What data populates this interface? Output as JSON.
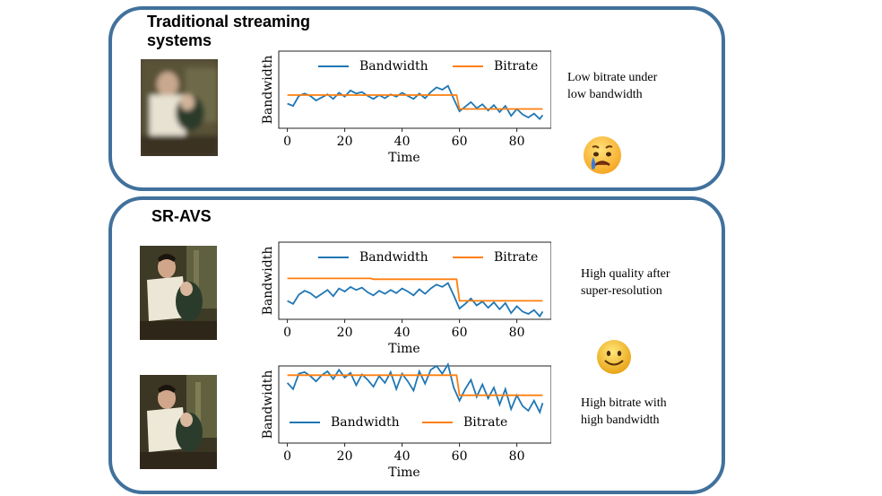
{
  "panels": {
    "traditional": {
      "title": "Traditional streaming\nsystems",
      "caption": "Low bitrate under\nlow bandwidth",
      "emoji": "crying-face-icon"
    },
    "sravs": {
      "title": "SR-AVS",
      "caption_sr": "High quality after\nsuper-resolution",
      "caption_high": "High bitrate with\nhigh bandwidth",
      "emoji": "smiling-face-icon"
    }
  },
  "colors": {
    "border": "#41719c",
    "bandwidth": "#1f77b4",
    "bitrate": "#ff7f0e"
  },
  "chart_data": [
    {
      "type": "line",
      "xlabel": "Time",
      "ylabel": "Bandwidth",
      "xticks": [
        "0",
        "20",
        "40",
        "60",
        "80"
      ],
      "xlim": [
        -3,
        92
      ],
      "ylim": [
        0,
        1
      ],
      "legend": "top",
      "series": [
        {
          "name": "Bandwidth",
          "x": [
            0,
            2,
            4,
            6,
            8,
            10,
            12,
            14,
            16,
            18,
            20,
            22,
            24,
            26,
            28,
            30,
            32,
            34,
            36,
            38,
            40,
            42,
            44,
            46,
            48,
            50,
            52,
            54,
            56,
            58,
            60,
            62,
            64,
            66,
            68,
            70,
            72,
            74,
            76,
            78,
            80,
            82,
            84,
            86,
            88,
            89
          ],
          "values": [
            0.32,
            0.29,
            0.42,
            0.45,
            0.42,
            0.36,
            0.4,
            0.44,
            0.38,
            0.46,
            0.41,
            0.49,
            0.45,
            0.47,
            0.42,
            0.38,
            0.43,
            0.39,
            0.44,
            0.41,
            0.46,
            0.42,
            0.38,
            0.45,
            0.39,
            0.47,
            0.53,
            0.5,
            0.55,
            0.38,
            0.22,
            0.28,
            0.34,
            0.26,
            0.31,
            0.23,
            0.3,
            0.21,
            0.29,
            0.16,
            0.25,
            0.18,
            0.14,
            0.19,
            0.12,
            0.17
          ]
        },
        {
          "name": "Bitrate",
          "x": [
            0,
            59,
            60,
            89
          ],
          "values": [
            0.43,
            0.43,
            0.25,
            0.25
          ]
        }
      ]
    },
    {
      "type": "line",
      "xlabel": "Time",
      "ylabel": "Bandwidth",
      "xticks": [
        "0",
        "20",
        "40",
        "60",
        "80"
      ],
      "xlim": [
        -3,
        92
      ],
      "ylim": [
        0,
        1
      ],
      "legend": "top",
      "series": [
        {
          "name": "Bandwidth",
          "x": [
            0,
            2,
            4,
            6,
            8,
            10,
            12,
            14,
            16,
            18,
            20,
            22,
            24,
            26,
            28,
            30,
            32,
            34,
            36,
            38,
            40,
            42,
            44,
            46,
            48,
            50,
            52,
            54,
            56,
            58,
            60,
            62,
            64,
            66,
            68,
            70,
            72,
            74,
            76,
            78,
            80,
            82,
            84,
            86,
            88,
            89
          ],
          "values": [
            0.24,
            0.2,
            0.32,
            0.37,
            0.34,
            0.28,
            0.33,
            0.38,
            0.3,
            0.4,
            0.36,
            0.42,
            0.38,
            0.41,
            0.35,
            0.31,
            0.37,
            0.33,
            0.38,
            0.34,
            0.4,
            0.36,
            0.31,
            0.39,
            0.33,
            0.4,
            0.45,
            0.42,
            0.47,
            0.31,
            0.14,
            0.2,
            0.27,
            0.18,
            0.23,
            0.15,
            0.22,
            0.13,
            0.21,
            0.08,
            0.17,
            0.1,
            0.07,
            0.12,
            0.04,
            0.1
          ]
        },
        {
          "name": "Bitrate",
          "x": [
            0,
            29,
            30,
            59,
            60,
            89
          ],
          "values": [
            0.53,
            0.53,
            0.52,
            0.52,
            0.24,
            0.24
          ]
        }
      ]
    },
    {
      "type": "line",
      "xlabel": "Time",
      "ylabel": "Bandwidth",
      "xticks": [
        "0",
        "20",
        "40",
        "60",
        "80"
      ],
      "xlim": [
        -3,
        92
      ],
      "ylim": [
        0,
        1
      ],
      "legend": "bottom",
      "series": [
        {
          "name": "Bandwidth",
          "x": [
            0,
            2,
            4,
            6,
            8,
            10,
            12,
            14,
            16,
            18,
            20,
            22,
            24,
            26,
            28,
            30,
            32,
            34,
            36,
            38,
            40,
            42,
            44,
            46,
            48,
            50,
            52,
            54,
            56,
            58,
            60,
            62,
            64,
            66,
            68,
            70,
            72,
            74,
            76,
            78,
            80,
            82,
            84,
            86,
            88,
            89
          ],
          "values": [
            0.78,
            0.7,
            0.9,
            0.92,
            0.87,
            0.8,
            0.88,
            0.93,
            0.83,
            0.95,
            0.85,
            0.91,
            0.75,
            0.89,
            0.82,
            0.73,
            0.87,
            0.78,
            0.92,
            0.7,
            0.9,
            0.8,
            0.68,
            0.93,
            0.77,
            0.95,
            1.0,
            0.9,
            1.02,
            0.72,
            0.55,
            0.7,
            0.82,
            0.6,
            0.76,
            0.58,
            0.72,
            0.5,
            0.7,
            0.44,
            0.62,
            0.48,
            0.42,
            0.55,
            0.4,
            0.52
          ]
        },
        {
          "name": "Bitrate",
          "x": [
            0,
            59,
            60,
            89
          ],
          "values": [
            0.88,
            0.88,
            0.62,
            0.62
          ]
        }
      ]
    }
  ]
}
